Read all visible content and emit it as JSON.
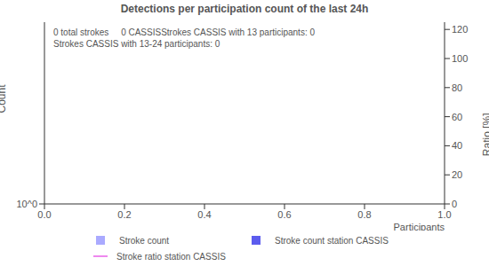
{
  "chart_data": {
    "type": "bar",
    "title": "Detections per participation count of the last 24h",
    "annotations": [
      "0 total strokes     0 CASSISStrokes CASSIS with 13 participants: 0",
      "Strokes CASSIS with 13-24 participants: 0"
    ],
    "x_label": "Participants",
    "y_label": "Count",
    "y2_label": "Ratio [%]",
    "x": [],
    "xlim": [
      0,
      1
    ],
    "xticks": [
      {
        "value": 0,
        "label": "0.0"
      },
      {
        "value": 0.2,
        "label": "0.2"
      },
      {
        "value": 0.4,
        "label": "0.4"
      },
      {
        "value": 0.6,
        "label": "0.6"
      },
      {
        "value": 0.8,
        "label": "0.8"
      },
      {
        "value": 1,
        "label": "1.0"
      }
    ],
    "log": "y",
    "ylim": [
      1,
      10
    ],
    "yticks": [
      {
        "value": 1,
        "label": "10^0"
      }
    ],
    "y2lim": [
      0,
      125
    ],
    "y2ticks": [
      0,
      20,
      40,
      60,
      80,
      100,
      120
    ],
    "series": [
      {
        "name": "Stroke count",
        "type": "bar",
        "color": "#aaaaff",
        "values": []
      },
      {
        "name": "Stroke count station CASSIS",
        "type": "bar",
        "color": "#5c5cee",
        "values": []
      },
      {
        "name": "Stroke ratio station CASSIS",
        "type": "line",
        "color": "#ee88ee",
        "axis": "y2",
        "values": []
      }
    ]
  }
}
